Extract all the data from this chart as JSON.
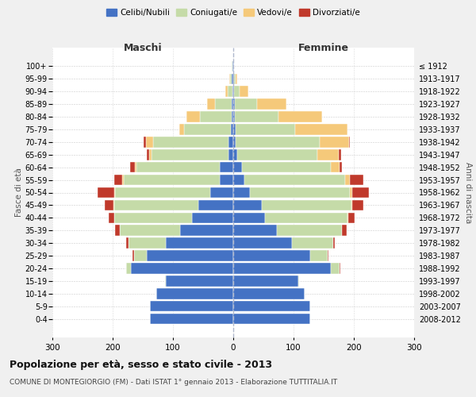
{
  "age_groups": [
    "0-4",
    "5-9",
    "10-14",
    "15-19",
    "20-24",
    "25-29",
    "30-34",
    "35-39",
    "40-44",
    "45-49",
    "50-54",
    "55-59",
    "60-64",
    "65-69",
    "70-74",
    "75-79",
    "80-84",
    "85-89",
    "90-94",
    "95-99",
    "100+"
  ],
  "birth_years": [
    "2008-2012",
    "2003-2007",
    "1998-2002",
    "1993-1997",
    "1988-1992",
    "1983-1987",
    "1978-1982",
    "1973-1977",
    "1968-1972",
    "1963-1967",
    "1958-1962",
    "1953-1957",
    "1948-1952",
    "1943-1947",
    "1938-1942",
    "1933-1937",
    "1928-1932",
    "1923-1927",
    "1918-1922",
    "1913-1917",
    "≤ 1912"
  ],
  "male_celibi": [
    138,
    138,
    128,
    112,
    170,
    143,
    112,
    88,
    68,
    58,
    38,
    22,
    22,
    8,
    8,
    4,
    3,
    2,
    1,
    2,
    1
  ],
  "male_coniugati": [
    0,
    0,
    0,
    1,
    8,
    22,
    62,
    100,
    130,
    140,
    158,
    160,
    138,
    128,
    125,
    78,
    52,
    28,
    8,
    3,
    1
  ],
  "male_vedovi": [
    0,
    0,
    0,
    0,
    0,
    0,
    0,
    0,
    0,
    1,
    1,
    2,
    3,
    4,
    12,
    8,
    22,
    14,
    4,
    1,
    0
  ],
  "male_divorziati": [
    0,
    0,
    0,
    0,
    0,
    2,
    4,
    8,
    8,
    14,
    28,
    14,
    8,
    4,
    4,
    0,
    0,
    0,
    0,
    0,
    0
  ],
  "female_celibi": [
    128,
    128,
    118,
    108,
    162,
    128,
    98,
    72,
    52,
    48,
    28,
    18,
    14,
    7,
    4,
    4,
    3,
    2,
    1,
    1,
    1
  ],
  "female_coniugati": [
    0,
    0,
    0,
    1,
    14,
    28,
    68,
    108,
    138,
    148,
    165,
    168,
    148,
    132,
    140,
    98,
    72,
    38,
    10,
    3,
    0
  ],
  "female_vedovi": [
    0,
    0,
    0,
    0,
    0,
    0,
    0,
    0,
    1,
    2,
    4,
    8,
    14,
    36,
    48,
    88,
    72,
    48,
    14,
    2,
    0
  ],
  "female_divorziati": [
    0,
    0,
    0,
    0,
    1,
    2,
    3,
    8,
    10,
    18,
    28,
    22,
    4,
    4,
    2,
    0,
    0,
    0,
    0,
    0,
    0
  ],
  "color_celibi": "#4472c4",
  "color_coniugati": "#c5dba8",
  "color_vedovi": "#f5c97a",
  "color_divorziati": "#c0392b",
  "xlim": 300,
  "title": "Popolazione per età, sesso e stato civile - 2013",
  "subtitle": "COMUNE DI MONTEGIORGIO (FM) - Dati ISTAT 1° gennaio 2013 - Elaborazione TUTTITALIA.IT",
  "ylabel_left": "Fasce di età",
  "ylabel_right": "Anni di nascita",
  "xlabel_left": "Maschi",
  "xlabel_right": "Femmine",
  "bg_color": "#f0f0f0",
  "plot_bg": "#ffffff"
}
